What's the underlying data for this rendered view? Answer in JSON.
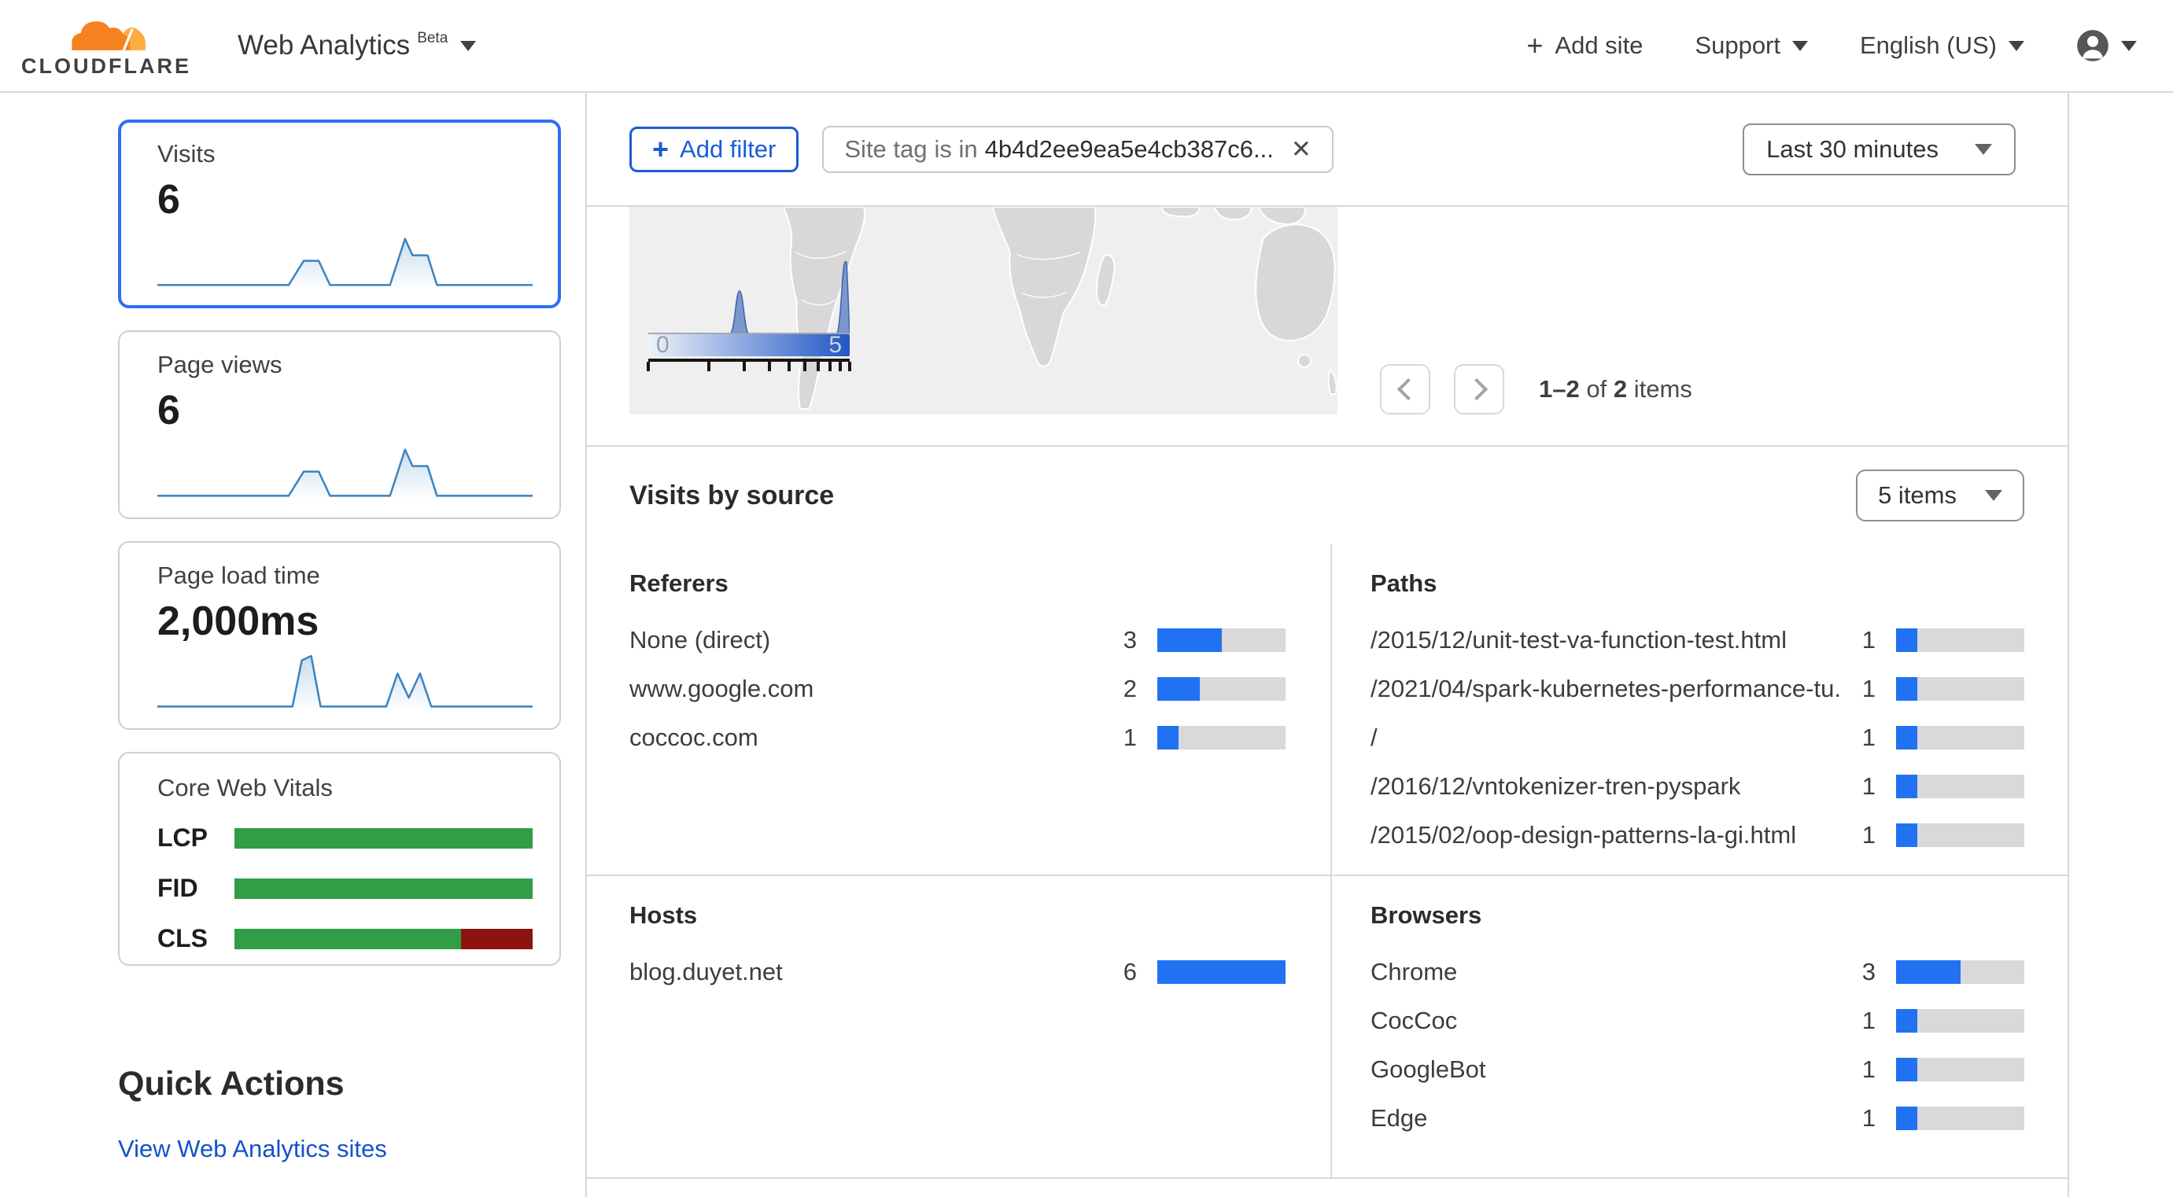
{
  "header": {
    "logo_text": "CLOUDFLARE",
    "product_title": "Web Analytics",
    "beta_badge": "Beta",
    "add_site_label": "Add site",
    "support_label": "Support",
    "language_label": "English (US)"
  },
  "sidebar": {
    "cards": [
      {
        "title": "Visits",
        "value": "6",
        "spark": "visits",
        "selected": true
      },
      {
        "title": "Page views",
        "value": "6",
        "spark": "visits",
        "selected": false
      },
      {
        "title": "Page load time",
        "value": "2,000ms",
        "spark": "loadtime",
        "selected": false
      }
    ],
    "sparklines": {
      "visits": [
        [
          0,
          28
        ],
        [
          35,
          28
        ],
        [
          39,
          17
        ],
        [
          43,
          17
        ],
        [
          46,
          28
        ],
        [
          62,
          28
        ],
        [
          66,
          7
        ],
        [
          68,
          14.5
        ],
        [
          72,
          14.5
        ],
        [
          74.5,
          28
        ],
        [
          100,
          28
        ]
      ],
      "loadtime": [
        [
          0,
          28
        ],
        [
          36,
          28
        ],
        [
          38.5,
          7
        ],
        [
          41,
          5
        ],
        [
          43.5,
          28
        ],
        [
          61,
          28
        ],
        [
          64,
          13
        ],
        [
          67,
          24
        ],
        [
          70,
          13
        ],
        [
          73,
          28
        ],
        [
          100,
          28
        ]
      ]
    },
    "core_web_vitals": {
      "title": "Core Web Vitals",
      "rows": [
        {
          "label": "LCP",
          "good": 100,
          "poor": 0
        },
        {
          "label": "FID",
          "good": 100,
          "poor": 0
        },
        {
          "label": "CLS",
          "good": 76,
          "poor": 24
        }
      ]
    },
    "quick_actions_title": "Quick Actions",
    "quick_actions_link": "View Web Analytics sites"
  },
  "toolbar": {
    "add_filter_label": "Add filter",
    "filter_field": "Site tag",
    "filter_operator": "is in",
    "filter_value": "4b4d2ee9ea5e4cb387c6...",
    "time_range": "Last 30 minutes"
  },
  "map_section": {
    "legend_min": "0",
    "legend_max": "5",
    "legend_ticks": [
      0,
      0.301,
      0.477,
      0.602,
      0.699,
      0.778,
      0.845,
      0.903,
      0.954,
      1
    ],
    "pagination": {
      "range": "1–2",
      "of_word": "of",
      "total": "2",
      "items_word": "items"
    }
  },
  "visits_by_source": {
    "title": "Visits by source",
    "items_per_list": "5 items",
    "max_value": 6,
    "groups": [
      {
        "name": "Referers",
        "rows": [
          {
            "label": "None (direct)",
            "value": 3
          },
          {
            "label": "www.google.com",
            "value": 2
          },
          {
            "label": "coccoc.com",
            "value": 1
          }
        ]
      },
      {
        "name": "Paths",
        "rows": [
          {
            "label": "/2015/12/unit-test-va-function-test.html",
            "value": 1
          },
          {
            "label": "/2021/04/spark-kubernetes-performance-tu...",
            "value": 1
          },
          {
            "label": "/",
            "value": 1
          },
          {
            "label": "/2016/12/vntokenizer-tren-pyspark",
            "value": 1
          },
          {
            "label": "/2015/02/oop-design-patterns-la-gi.html",
            "value": 1
          }
        ]
      },
      {
        "name": "Hosts",
        "rows": [
          {
            "label": "blog.duyet.net",
            "value": 6
          }
        ]
      },
      {
        "name": "Browsers",
        "rows": [
          {
            "label": "Chrome",
            "value": 3
          },
          {
            "label": "CocCoc",
            "value": 1
          },
          {
            "label": "GoogleBot",
            "value": 1
          },
          {
            "label": "Edge",
            "value": 1
          }
        ]
      }
    ]
  },
  "colors": {
    "accent_blue": "#1a5bd8",
    "bar_blue": "#2172f2",
    "bar_track": "#d9d9d9",
    "good_green": "#2f9e44",
    "poor_red": "#8c130f",
    "spark_blue": "#3a83c0",
    "selected_card_blue": "#2e6ff2",
    "logo_orange": "#f6821f",
    "logo_light_orange": "#fbad41"
  }
}
